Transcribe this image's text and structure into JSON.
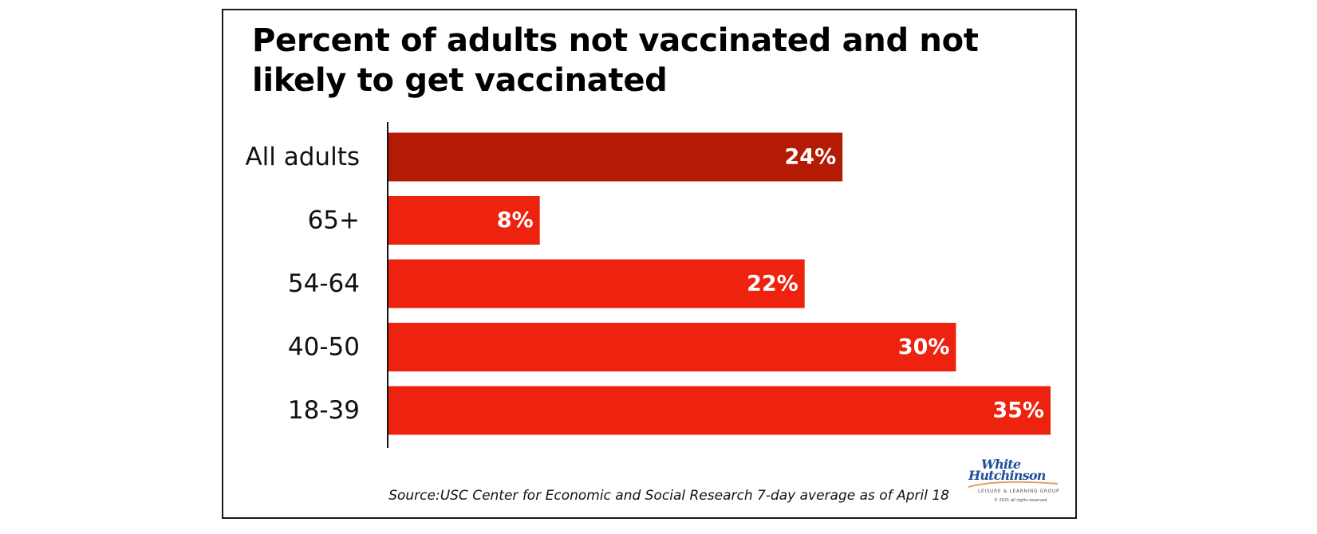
{
  "chart_data": {
    "type": "bar",
    "orientation": "horizontal",
    "title": "Percent of adults not vaccinated and not likely to get vaccinated",
    "xlabel": "",
    "ylabel": "",
    "xlim": [
      0,
      35
    ],
    "grid": false,
    "categories": [
      "All adults",
      "65+",
      "54-64",
      "40-50",
      "18-39"
    ],
    "values": [
      24,
      8,
      22,
      30,
      35
    ],
    "value_labels": [
      "24%",
      "8%",
      "22%",
      "30%",
      "35%"
    ],
    "unit": "%",
    "bar_colors": [
      "#b31b04",
      "#ee230f",
      "#ee230f",
      "#ee230f",
      "#ee230f"
    ],
    "source": "Source:USC Center for Economic and Social Research 7-day average as of April 18"
  },
  "logo": {
    "line1": "White",
    "line2": "Hutchinson",
    "tagline": "LEISURE & LEARNING GROUP",
    "copyright": "© 2021 all rights reserved",
    "color": "#1f4f9a",
    "accent": "#e0a060"
  }
}
